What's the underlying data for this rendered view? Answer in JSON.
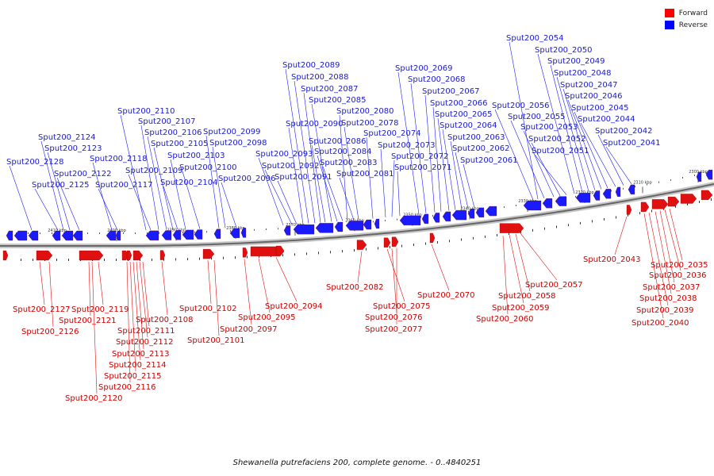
{
  "legend": {
    "items": [
      {
        "label": "Forward",
        "color": "#ff0000"
      },
      {
        "label": "Reverse",
        "color": "#0000ff"
      }
    ]
  },
  "caption": "Shewanella putrefaciens 200, complete genome. - 0..4840251",
  "colors": {
    "forward": "#e01010",
    "reverse": "#1a1aff",
    "forward_label": "#cc0000",
    "reverse_label": "#1a1ad0",
    "backbone": "#888888"
  },
  "ticks": [
    "2410 kbp",
    "2400 kbp",
    "2390 kbp",
    "2380 kbp",
    "2370 kbp",
    "2360 kbp",
    "2350 kbp",
    "2340 kbp",
    "2330 kbp",
    "2320 kbp",
    "2310 kbp",
    "2300 kbp"
  ],
  "reverse_genes": [
    "Sput200_2128",
    "Sput200_2125",
    "Sput200_2124",
    "Sput200_2123",
    "Sput200_2122",
    "Sput200_2118",
    "Sput200_2117",
    "Sput200_2110",
    "Sput200_2109",
    "Sput200_2107",
    "Sput200_2106",
    "Sput200_2105",
    "Sput200_2104",
    "Sput200_2103",
    "Sput200_2100",
    "Sput200_2099",
    "Sput200_2098",
    "Sput200_2096",
    "Sput200_2093",
    "Sput200_2092",
    "Sput200_2091",
    "Sput200_2090",
    "Sput200_2089",
    "Sput200_2088",
    "Sput200_2087",
    "Sput200_2086",
    "Sput200_2085",
    "Sput200_2084",
    "Sput200_2083",
    "Sput200_2081",
    "Sput200_2080",
    "Sput200_2078",
    "Sput200_2074",
    "Sput200_2073",
    "Sput200_2072",
    "Sput200_2071",
    "Sput200_2069",
    "Sput200_2068",
    "Sput200_2067",
    "Sput200_2066",
    "Sput200_2065",
    "Sput200_2064",
    "Sput200_2063",
    "Sput200_2062",
    "Sput200_2061",
    "Sput200_2056",
    "Sput200_2055",
    "Sput200_2054",
    "Sput200_2053",
    "Sput200_2052",
    "Sput200_2051",
    "Sput200_2050",
    "Sput200_2049",
    "Sput200_2048",
    "Sput200_2047",
    "Sput200_2046",
    "Sput200_2045",
    "Sput200_2044",
    "Sput200_2042",
    "Sput200_2041"
  ],
  "forward_genes": [
    "Sput200_2127",
    "Sput200_2126",
    "Sput200_2121",
    "Sput200_2120",
    "Sput200_2119",
    "Sput200_2116",
    "Sput200_2115",
    "Sput200_2114",
    "Sput200_2113",
    "Sput200_2112",
    "Sput200_2111",
    "Sput200_2108",
    "Sput200_2102",
    "Sput200_2101",
    "Sput200_2097",
    "Sput200_2095",
    "Sput200_2094",
    "Sput200_2082",
    "Sput200_2077",
    "Sput200_2076",
    "Sput200_2075",
    "Sput200_2070",
    "Sput200_2060",
    "Sput200_2059",
    "Sput200_2058",
    "Sput200_2057",
    "Sput200_2043",
    "Sput200_2040",
    "Sput200_2039",
    "Sput200_2038",
    "Sput200_2037",
    "Sput200_2036",
    "Sput200_2035"
  ]
}
